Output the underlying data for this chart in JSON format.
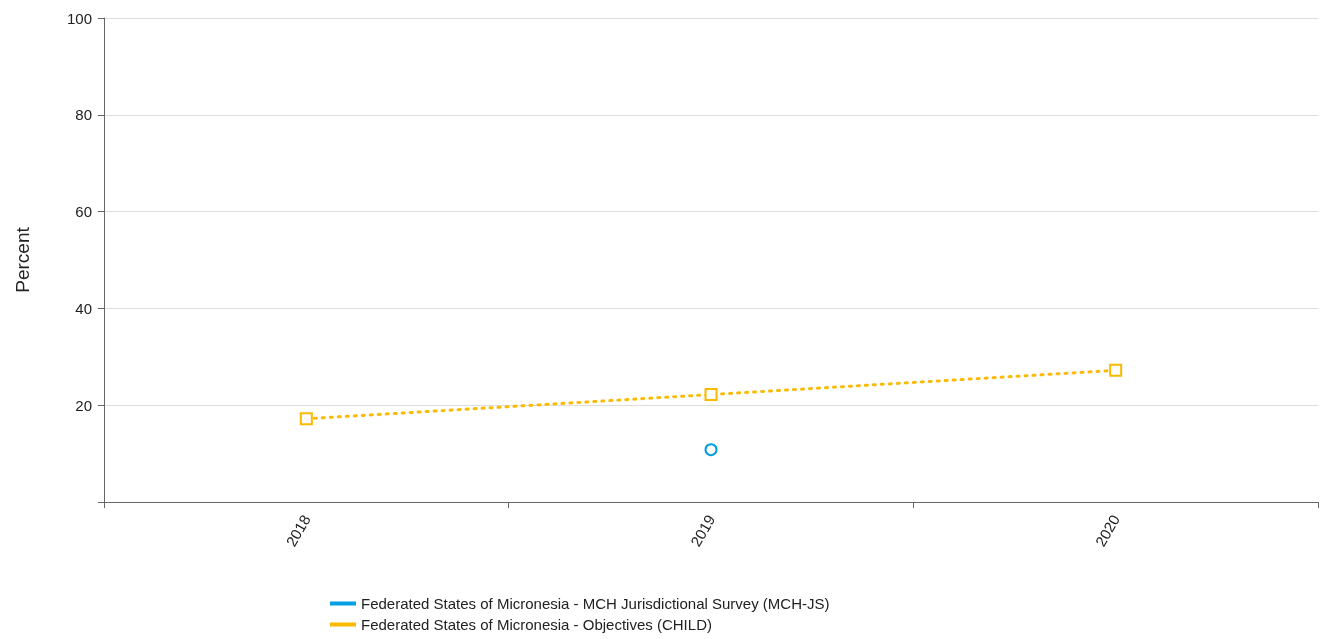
{
  "chart_data": {
    "type": "line",
    "ylabel": "Percent",
    "categories": [
      "2018",
      "2019",
      "2020"
    ],
    "series": [
      {
        "name": "Federated States of Micronesia - MCH Jurisdictional Survey (MCH-JS)",
        "color": "#009fe3",
        "values": [
          null,
          10.8,
          null
        ],
        "marker": "circle",
        "line_style": "solid"
      },
      {
        "name": "Federated States of Micronesia - Objectives (CHILD)",
        "color": "#fbb900",
        "values": [
          17.2,
          22.2,
          27.2
        ],
        "marker": "square",
        "line_style": "dotted"
      }
    ],
    "ylim": [
      0,
      100
    ],
    "yticks": [
      {
        "value": 0,
        "label": null
      },
      20,
      40,
      60,
      80,
      100
    ],
    "grid": "y",
    "legend": "bottom"
  }
}
